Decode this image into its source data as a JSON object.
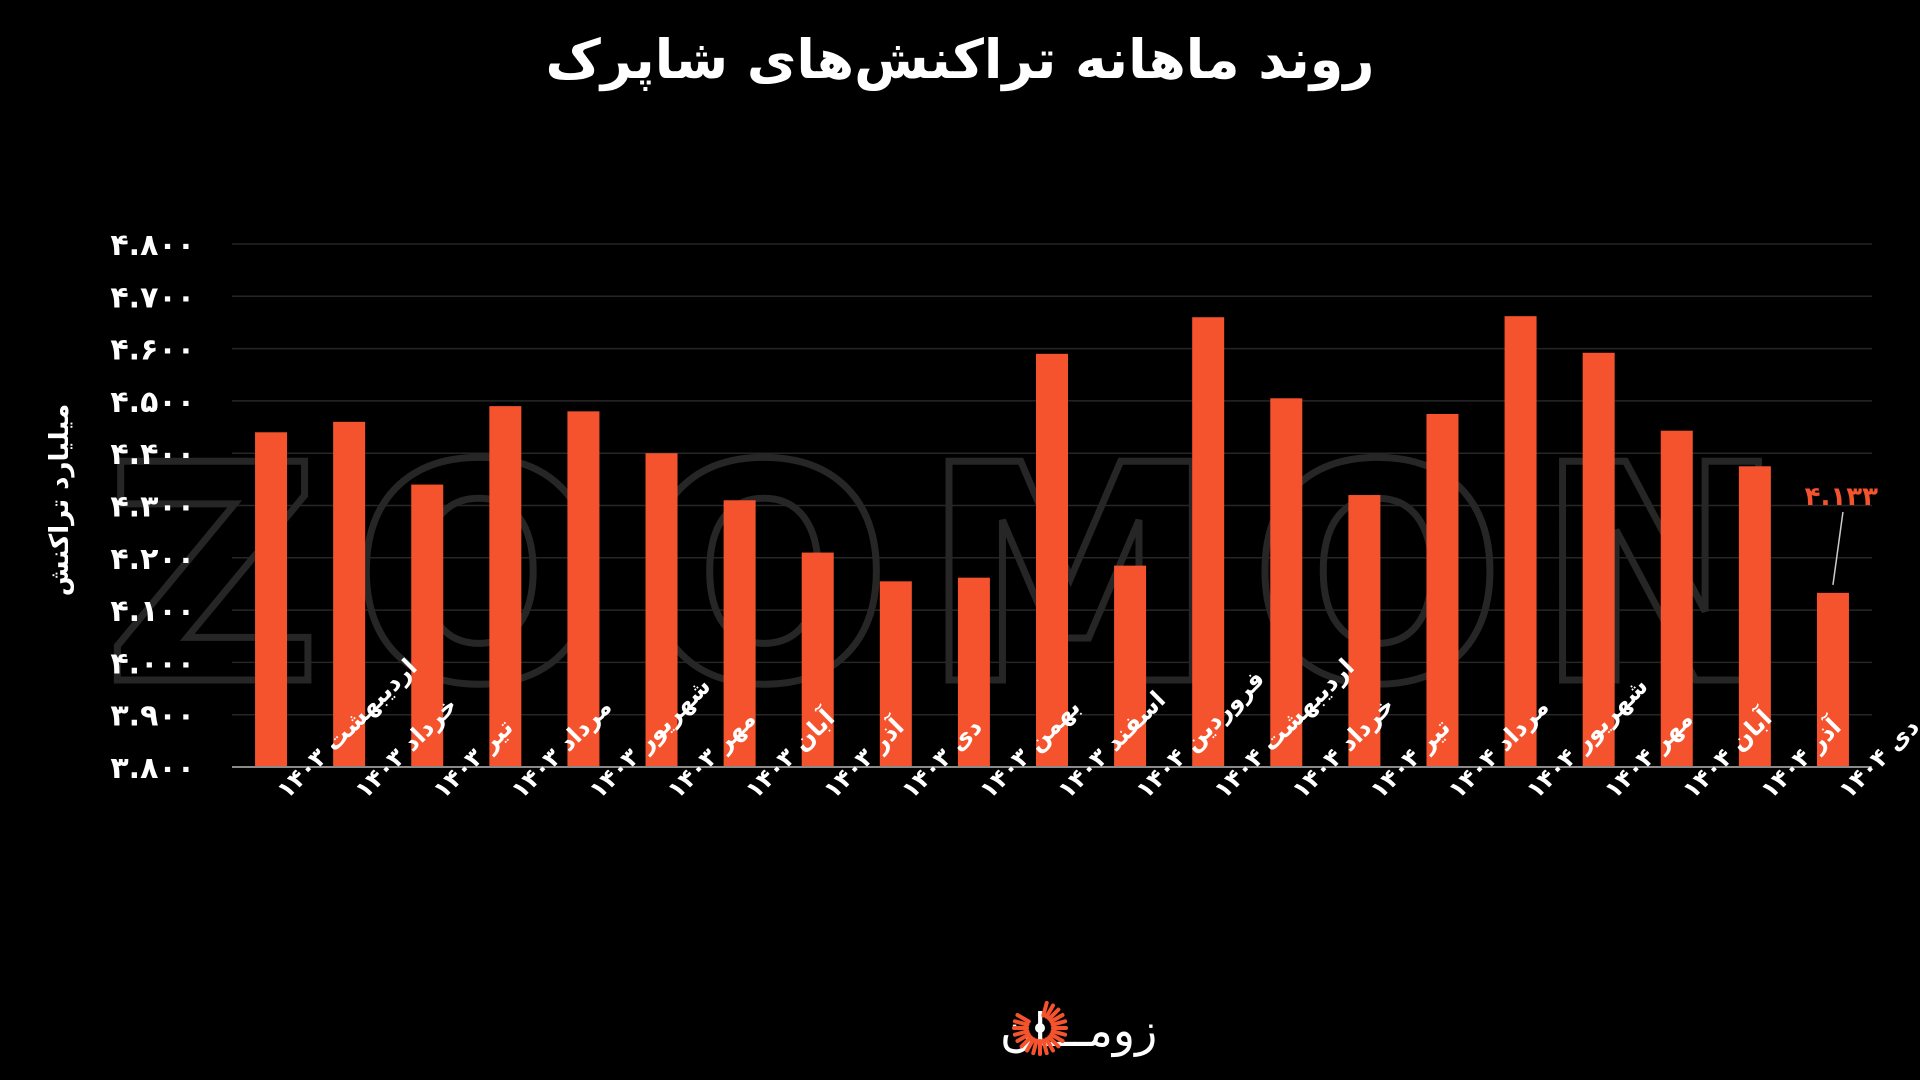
{
  "colors": {
    "background": "#000000",
    "bar": "#F4532D",
    "text": "#ffffff",
    "grid": "#262626",
    "axis": "#8a8a8a",
    "watermark": "#262626"
  },
  "watermark": {
    "text": "ZOOMON"
  },
  "brand": {
    "name": "زومـــان",
    "icon": "sunburst-logo-icon"
  },
  "chart_data": {
    "type": "bar",
    "title": "روند ماهانه تراکنش‌های شاپرک",
    "xlabel": "",
    "ylabel": "میلیارد تراکنش",
    "ylim": [
      3.8,
      4.8
    ],
    "yticks": [
      4.8,
      4.7,
      4.6,
      4.5,
      4.4,
      4.3,
      4.2,
      4.1,
      4.0,
      3.9,
      3.8
    ],
    "ytick_labels": [
      "۴.۸۰۰",
      "۴.۷۰۰",
      "۴.۶۰۰",
      "۴.۵۰۰",
      "۴.۴۰۰",
      "۴.۳۰۰",
      "۴.۲۰۰",
      "۴.۱۰۰",
      "۴.۰۰۰",
      "۳.۹۰۰",
      "۳.۸۰۰"
    ],
    "grid": true,
    "categories": [
      "اردیبهشت ۱۴۰۳",
      "خرداد ۱۴۰۳",
      "تیر ۱۴۰۳",
      "مرداد ۱۴۰۳",
      "شهریور ۱۴۰۳",
      "مهر ۱۴۰۳",
      "آبان ۱۴۰۳",
      "آذر ۱۴۰۳",
      "دی ۱۴۰۳",
      "بهمن ۱۴۰۳",
      "اسفند ۱۴۰۳",
      "فروردین ۱۴۰۴",
      "اردیبهشت ۱۴۰۴",
      "خرداد ۱۴۰۴",
      "تیر ۱۴۰۴",
      "مرداد ۱۴۰۴",
      "شهریور ۱۴۰۴",
      "مهر ۱۴۰۴",
      "آبان ۱۴۰۴",
      "آذر ۱۴۰۴",
      "دی ۱۴۰۴"
    ],
    "values": [
      4.44,
      4.46,
      4.34,
      4.49,
      4.48,
      4.4,
      4.31,
      4.21,
      4.155,
      4.162,
      4.59,
      4.185,
      4.66,
      4.505,
      4.32,
      4.475,
      4.662,
      4.592,
      4.443,
      4.375,
      4.133
    ],
    "annotations": [
      {
        "index": 20,
        "text": "۴.۱۳۳"
      }
    ]
  }
}
